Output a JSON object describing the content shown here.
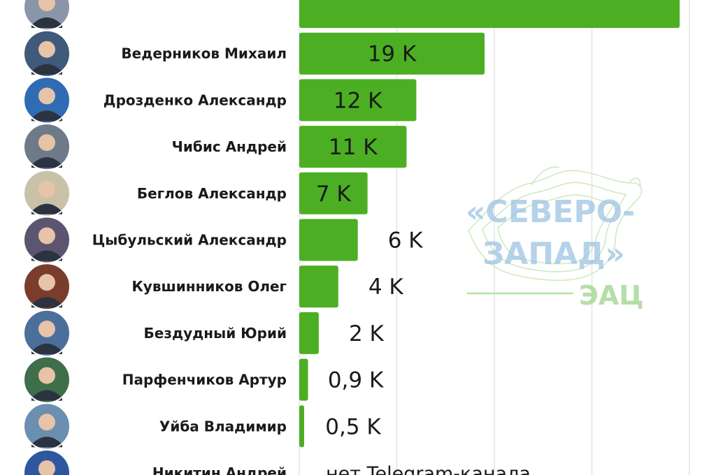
{
  "chart_data": {
    "type": "bar",
    "orientation": "horizontal",
    "categories": [
      "",
      "Ведерников Михаил",
      "Дрозденко Александр",
      "Чибис Андрей",
      "Беглов Александр",
      "Цыбульский Александр",
      "Кувшинников Олег",
      "Бездудный Юрий",
      "Парфенчиков Артур",
      "Уйба Владимир",
      "Никитин Андрей"
    ],
    "values": [
      39,
      19,
      12,
      11,
      7,
      6,
      4,
      2,
      0.9,
      0.5,
      null
    ],
    "value_labels": [
      "",
      "19 K",
      "12 K",
      "11 K",
      "7 K",
      "6 K",
      "4 K",
      "2 K",
      "0,9 K",
      "0,5 K",
      "нет Telegram-канала"
    ],
    "unit": "K",
    "xlim": [
      0,
      40
    ],
    "grid": true,
    "bar_color": "#4caf23",
    "avatar_colors": [
      "#8a96a8",
      "#3f5a7a",
      "#2f6cb3",
      "#6e7a88",
      "#c9c2a8",
      "#5b5570",
      "#7a3d2c",
      "#4a6f9a",
      "#3f6e4a",
      "#6a8fb0",
      "#2f57a0"
    ]
  },
  "watermark": {
    "line1": "«СЕВЕРО-",
    "line2": "ЗАПАД»",
    "line3": "ЭАЦ"
  }
}
